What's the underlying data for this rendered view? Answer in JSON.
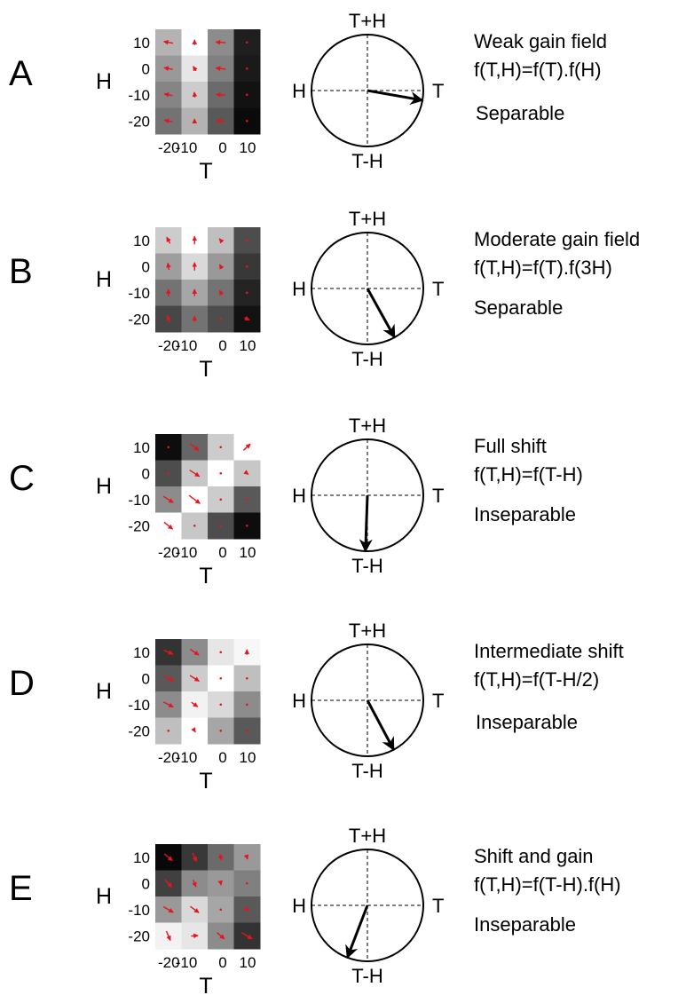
{
  "axis_labels": {
    "y_name": "H",
    "x_name": "T",
    "y_ticks": [
      "10",
      "0",
      "-10",
      "-20"
    ],
    "x_ticks": [
      "-20",
      "-10",
      "0",
      "10"
    ]
  },
  "circle_labels": {
    "top": "T+H",
    "bottom": "T-H",
    "left": "H",
    "right": "T"
  },
  "panels": [
    {
      "letter": "A",
      "title": "Weak gain field",
      "formula": "f(T,H)=f(T).f(H)",
      "classification": "Separable",
      "arrow_angle_deg": -10,
      "arrow_length": 1.0,
      "heatmap": [
        [
          0.7,
          1.0,
          0.55,
          0.12
        ],
        [
          0.6,
          0.9,
          0.5,
          0.1
        ],
        [
          0.52,
          0.8,
          0.42,
          0.07
        ],
        [
          0.45,
          0.7,
          0.35,
          0.04
        ]
      ],
      "vectors": [
        [
          [
            -0.8,
            0.15
          ],
          [
            0.0,
            0.45
          ],
          [
            -0.85,
            0.05
          ],
          [
            0,
            0
          ]
        ],
        [
          [
            -0.75,
            0.15
          ],
          [
            -0.25,
            0.4
          ],
          [
            -0.85,
            0.1
          ],
          [
            0,
            0
          ]
        ],
        [
          [
            -0.7,
            0.15
          ],
          [
            -0.05,
            0.45
          ],
          [
            -0.8,
            0.05
          ],
          [
            0,
            0
          ]
        ],
        [
          [
            -0.7,
            0.15
          ],
          [
            0.0,
            0.35
          ],
          [
            -0.75,
            0.05
          ],
          [
            0,
            0
          ]
        ]
      ]
    },
    {
      "letter": "B",
      "title": "Moderate gain field",
      "formula": "f(T,H)=f(T).f(3H)",
      "classification": "Separable",
      "arrow_angle_deg": -61,
      "arrow_length": 1.0,
      "heatmap": [
        [
          0.8,
          1.0,
          0.75,
          0.3
        ],
        [
          0.62,
          0.85,
          0.6,
          0.22
        ],
        [
          0.45,
          0.65,
          0.45,
          0.14
        ],
        [
          0.28,
          0.45,
          0.3,
          0.07
        ]
      ],
      "vectors": [
        [
          [
            -0.3,
            0.55
          ],
          [
            0.0,
            0.7
          ],
          [
            -0.25,
            0.3
          ],
          [
            0,
            0
          ]
        ],
        [
          [
            -0.1,
            0.6
          ],
          [
            0.0,
            0.7
          ],
          [
            -0.2,
            0.35
          ],
          [
            0,
            0
          ]
        ],
        [
          [
            0.0,
            0.6
          ],
          [
            0.0,
            0.6
          ],
          [
            -0.2,
            0.4
          ],
          [
            0,
            0
          ]
        ],
        [
          [
            -0.2,
            0.6
          ],
          [
            0.0,
            0.5
          ],
          [
            0.0,
            0.0
          ],
          [
            0.45,
            -0.2
          ]
        ]
      ]
    },
    {
      "letter": "C",
      "title": "Full shift",
      "formula": "f(T,H)=f(T-H)",
      "classification": "Inseparable",
      "arrow_angle_deg": -92,
      "arrow_length": 1.0,
      "heatmap": [
        [
          0.05,
          0.4,
          0.8,
          1.0
        ],
        [
          0.3,
          0.78,
          1.0,
          0.78
        ],
        [
          0.55,
          1.0,
          0.8,
          0.35
        ],
        [
          1.0,
          0.78,
          0.3,
          0.05
        ]
      ],
      "vectors": [
        [
          [
            0,
            0
          ],
          [
            0.75,
            -0.6
          ],
          [
            0,
            0
          ],
          [
            0.6,
            0.55
          ]
        ],
        [
          [
            0,
            0
          ],
          [
            0.85,
            -0.55
          ],
          [
            0.05,
            0
          ],
          [
            0.25,
            -0.2
          ]
        ],
        [
          [
            0.85,
            -0.55
          ],
          [
            0.95,
            -0.7
          ],
          [
            0.05,
            0
          ],
          [
            0,
            0
          ]
        ],
        [
          [
            0.75,
            -0.6
          ],
          [
            0.05,
            0
          ],
          [
            0,
            0
          ],
          [
            0,
            0
          ]
        ]
      ]
    },
    {
      "letter": "D",
      "title": "Intermediate shift",
      "formula": "f(T,H)=f(T-H/2)",
      "classification": "Inseparable",
      "arrow_angle_deg": -62,
      "arrow_length": 1.0,
      "heatmap": [
        [
          0.2,
          0.55,
          0.9,
          0.97
        ],
        [
          0.35,
          0.8,
          1.0,
          0.75
        ],
        [
          0.55,
          0.95,
          0.85,
          0.55
        ],
        [
          0.75,
          1.0,
          0.65,
          0.35
        ]
      ],
      "vectors": [
        [
          [
            0.8,
            -0.35
          ],
          [
            0.75,
            -0.5
          ],
          [
            0.0,
            0.0
          ],
          [
            0.0,
            0.45
          ]
        ],
        [
          [
            0.9,
            -0.45
          ],
          [
            0.8,
            -0.5
          ],
          [
            0.05,
            0.0
          ],
          [
            0.0,
            0.0
          ]
        ],
        [
          [
            0.85,
            -0.45
          ],
          [
            0.55,
            -0.4
          ],
          [
            0.0,
            0.0
          ],
          [
            0.0,
            0.0
          ]
        ],
        [
          [
            0.0,
            0.0
          ],
          [
            0.15,
            -0.25
          ],
          [
            0.0,
            0.0
          ],
          [
            0.0,
            0.0
          ]
        ]
      ]
    },
    {
      "letter": "E",
      "title": "Shift and gain",
      "formula": "f(T,H)=f(T-H).f(H)",
      "classification": "Inseparable",
      "arrow_angle_deg": -111,
      "arrow_length": 1.0,
      "heatmap": [
        [
          0.03,
          0.22,
          0.42,
          0.6
        ],
        [
          0.25,
          0.55,
          0.6,
          0.5
        ],
        [
          0.6,
          0.85,
          0.65,
          0.35
        ],
        [
          0.95,
          0.9,
          0.55,
          0.2
        ]
      ],
      "vectors": [
        [
          [
            0.7,
            -0.6
          ],
          [
            0.35,
            -0.75
          ],
          [
            0.15,
            -0.5
          ],
          [
            0.1,
            -0.35
          ]
        ],
        [
          [
            0.6,
            -0.65
          ],
          [
            0.25,
            -0.6
          ],
          [
            0.05,
            -0.3
          ],
          [
            0.0,
            0.0
          ]
        ],
        [
          [
            0.85,
            -0.5
          ],
          [
            0.75,
            -0.55
          ],
          [
            0.0,
            0.0
          ],
          [
            0.35,
            -0.2
          ]
        ],
        [
          [
            0.35,
            -0.8
          ],
          [
            0.6,
            0.05
          ],
          [
            0.65,
            -0.55
          ],
          [
            0.9,
            -0.55
          ]
        ]
      ]
    }
  ],
  "colors": {
    "vector": "#e8141c",
    "arrow": "#000000",
    "dash": "#000000"
  }
}
